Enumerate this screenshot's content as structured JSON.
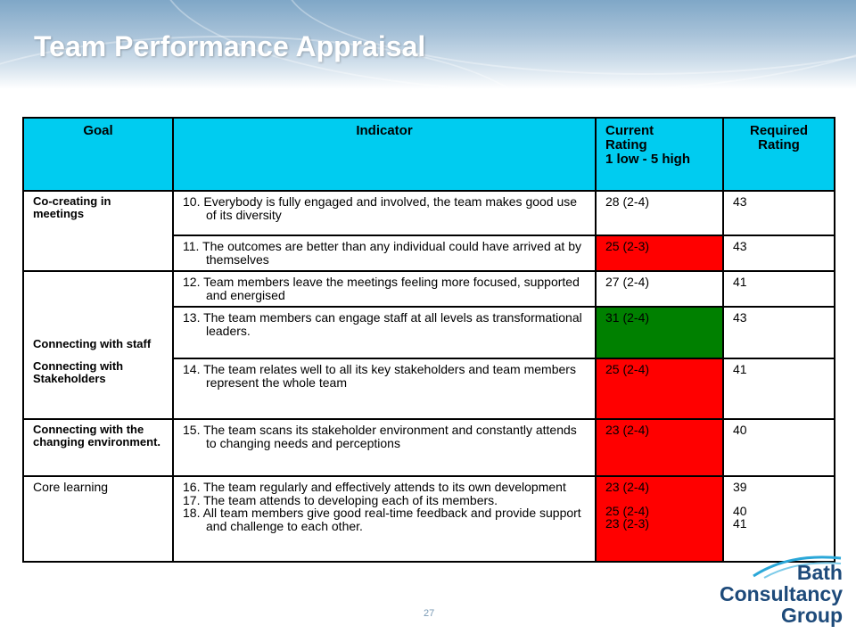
{
  "slide": {
    "title": "Team Performance Appraisal",
    "page_number": "27"
  },
  "logo": {
    "line1": "Bath",
    "line2": "Consultancy",
    "line3": "Group"
  },
  "colors": {
    "header_fill": "#00ccf0",
    "red": "#ff0000",
    "green": "#008000",
    "title_band": "#8fb1cd"
  },
  "table": {
    "headers": {
      "goal": "Goal",
      "indicator": "Indicator",
      "current_l1": "Current",
      "current_l2": "Rating",
      "current_l3": "1 low - 5 high",
      "required_l1": "Required",
      "required_l2": "Rating"
    },
    "goals": {
      "co_creating": "Co-creating in meetings",
      "staff": "Connecting with staff",
      "stakeholders": "Connecting with Stakeholders",
      "environment": "Connecting with the changing environment.",
      "core": "Core learning"
    },
    "rows": [
      {
        "indicator": "10. Everybody is fully engaged and involved, the team makes good use of its diversity",
        "current": "28 (2-4)",
        "required": "43"
      },
      {
        "indicator": "11.    The outcomes are better than any individual could have arrived at by themselves",
        "current": "25 (2-3)",
        "required": "43"
      },
      {
        "indicator": "12. Team members leave the meetings feeling more focused, supported and energised",
        "current": "27 (2-4)",
        "required": "41"
      },
      {
        "indicator": "13.   The team members can engage staff at all levels as transformational leaders.",
        "current": "31 (2-4)",
        "required": "43"
      },
      {
        "indicator": "14.  The team relates well to all its key stakeholders and team members represent the whole team",
        "current": "25 (2-4)",
        "required": "41"
      },
      {
        "indicator": "15. The team scans its stakeholder environment and constantly attends to changing needs and perceptions",
        "current": "23 (2-4)",
        "required": "40"
      }
    ],
    "core_rows": [
      {
        "indicator": "16. The team regularly and effectively attends to its own development",
        "current": "23 (2-4)",
        "required": "39"
      },
      {
        "indicator": "17. The team attends to developing each of its members.",
        "current": "25 (2-4)",
        "required": "40"
      },
      {
        "indicator": "18. All team members give good real-time feedback and provide support and challenge to each other.",
        "current": "23 (2-3)",
        "required": "41"
      }
    ]
  }
}
